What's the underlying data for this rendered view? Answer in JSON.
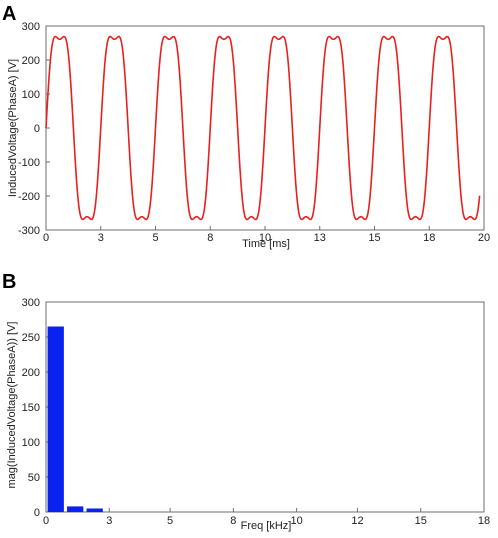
{
  "chart_data": [
    {
      "panel_label": "A",
      "type": "line",
      "xlabel": "Time [ms]",
      "ylabel": "InducedVoltage(PhaseA) [V]",
      "xlim": [
        0,
        20
      ],
      "ylim": [
        -300,
        300
      ],
      "xticks": [
        "0",
        "3",
        "5",
        "8",
        "10",
        "13",
        "15",
        "18",
        "20"
      ],
      "xtick_values": [
        0,
        2.5,
        5,
        7.5,
        10,
        12.5,
        15,
        17.5,
        20
      ],
      "yticks": [
        "300",
        "200",
        "100",
        "0",
        "-100",
        "-200",
        "-300"
      ],
      "ytick_values": [
        300,
        200,
        100,
        0,
        -100,
        -200,
        -300
      ],
      "grid": false,
      "series": [
        {
          "color": "#e8201e",
          "waveform": "flat-topped sinusoid",
          "amplitude": 268,
          "period": 2.5,
          "x_start": 0,
          "x_end": 19.8,
          "y_at_start": 0
        }
      ]
    },
    {
      "panel_label": "B",
      "type": "bar",
      "xlabel": "Freq [kHz]",
      "ylabel": "mag(InducedVoltage(PhaseA)) [V]",
      "xlim": [
        0,
        18
      ],
      "ylim": [
        0,
        300
      ],
      "xticks": [
        "0",
        "3",
        "5",
        "8",
        "10",
        "12",
        "15",
        "18"
      ],
      "xtick_values": [
        0,
        2.6,
        5.1,
        7.7,
        10.3,
        12.8,
        15.4,
        18
      ],
      "yticks": [
        "300",
        "250",
        "200",
        "150",
        "100",
        "50",
        "0"
      ],
      "ytick_values": [
        300,
        250,
        200,
        150,
        100,
        50,
        0
      ],
      "grid": false,
      "bar_color": "#0a22f0",
      "x": [
        0.4,
        1.2,
        2.0
      ],
      "values": [
        265,
        8,
        5
      ]
    }
  ]
}
